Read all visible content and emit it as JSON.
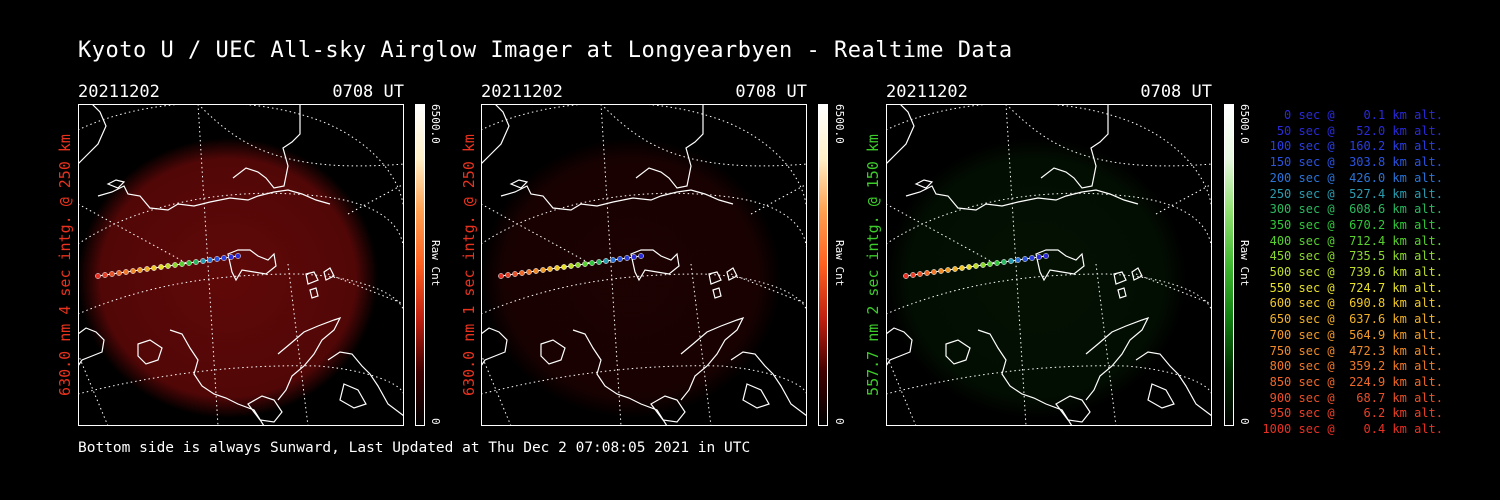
{
  "title": "Kyoto U / UEC All-sky Airglow Imager at Longyearbyen - Realtime Data",
  "footer": "Bottom side is always Sunward, Last Updated at Thu Dec  2 07:08:05 2021 in UTC",
  "panels": [
    {
      "date": "20211202",
      "time": "0708 UT",
      "ylabel": "630.0 nm 4 sec intg. @ 250 km",
      "label_color": "#e8321e",
      "cbar_max": "6500.0",
      "cbar_min": "0",
      "cbar_unit": "Raw Cnt",
      "glow_color": "#c01010",
      "glow_opacity": 0.5
    },
    {
      "date": "20211202",
      "time": "0708 UT",
      "ylabel": "630.0 nm 1 sec intg. @ 250 km",
      "label_color": "#e8321e",
      "cbar_max": "6500.0",
      "cbar_min": "0",
      "cbar_unit": "Raw Cnt",
      "glow_color": "#a00808",
      "glow_opacity": 0.18
    },
    {
      "date": "20211202",
      "time": "0708 UT",
      "ylabel": "557.7 nm 2 sec intg. @ 150 km",
      "label_color": "#3ccc2a",
      "cbar_max": "6500.0",
      "cbar_min": "0",
      "cbar_unit": "Raw Cnt",
      "glow_color": "#1a8a10",
      "glow_opacity": 0.12
    }
  ],
  "legend": [
    {
      "text": "   0 sec @    0.1 km alt.",
      "color": "#2a2ad8"
    },
    {
      "text": "  50 sec @   52.0 km alt.",
      "color": "#2a2ad8"
    },
    {
      "text": " 100 sec @  160.2 km alt.",
      "color": "#2a3ee0"
    },
    {
      "text": " 150 sec @  303.8 km alt.",
      "color": "#2a54e0"
    },
    {
      "text": " 200 sec @  426.0 km alt.",
      "color": "#2a74d8"
    },
    {
      "text": " 250 sec @  527.4 km alt.",
      "color": "#2a9cb0"
    },
    {
      "text": " 300 sec @  608.6 km alt.",
      "color": "#2ab860"
    },
    {
      "text": " 350 sec @  670.2 km alt.",
      "color": "#30c83a"
    },
    {
      "text": " 400 sec @  712.4 km alt.",
      "color": "#58d030"
    },
    {
      "text": " 450 sec @  735.5 km alt.",
      "color": "#8cd82e"
    },
    {
      "text": " 500 sec @  739.6 km alt.",
      "color": "#c0dc2c"
    },
    {
      "text": " 550 sec @  724.7 km alt.",
      "color": "#e6e02a"
    },
    {
      "text": " 600 sec @  690.8 km alt.",
      "color": "#f0c828"
    },
    {
      "text": " 650 sec @  637.6 km alt.",
      "color": "#f0b028"
    },
    {
      "text": " 700 sec @  564.9 km alt.",
      "color": "#f09a28"
    },
    {
      "text": " 750 sec @  472.3 km alt.",
      "color": "#f08a28"
    },
    {
      "text": " 800 sec @  359.2 km alt.",
      "color": "#f07828"
    },
    {
      "text": " 850 sec @  224.9 km alt.",
      "color": "#f06828"
    },
    {
      "text": " 900 sec @   68.7 km alt.",
      "color": "#e85028"
    },
    {
      "text": " 950 sec @    6.2 km alt.",
      "color": "#e84028"
    },
    {
      "text": "1000 sec @    0.4 km alt.",
      "color": "#e83024"
    }
  ]
}
